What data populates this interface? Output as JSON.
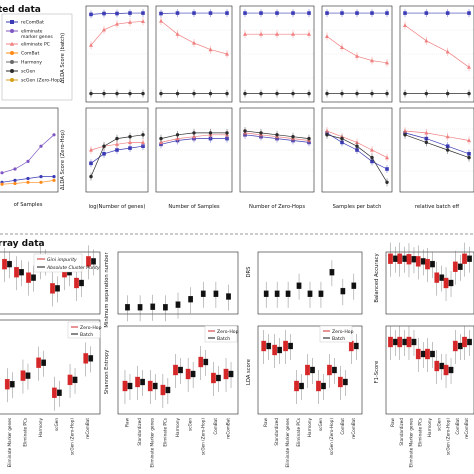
{
  "sections": {
    "top_title": "ted data",
    "bottom_title": "rray data"
  },
  "legend_top": [
    "reComBat",
    "eliminate marker genes",
    "eliminate PC",
    "ComBat",
    "Harmony",
    "scGen",
    "scGen (Zero-Hop)"
  ],
  "colors": {
    "reComBat": "#3b3bb5",
    "eliminate marker genes": "#7e57c2",
    "eliminate PC": "#f08080",
    "ComBat": "#ff8c1a",
    "Harmony": "#6b6b6b",
    "scGen": "#2d2d2d",
    "scGen (Zero-Hop)": "#d4a017",
    "red": "#d62728",
    "black": "#111111"
  },
  "chart_data": [
    {
      "id": "top-row1",
      "type": "line",
      "ylabel": "ΔLDA Score (batch)",
      "panels": [
        {
          "xlabel": "log(Number of genes)",
          "ylim": [
            -1,
            1
          ],
          "series": [
            {
              "name": "reComBat",
              "values": [
                0.9,
                0.92,
                0.92,
                0.93,
                0.93
              ]
            },
            {
              "name": "eliminate PC",
              "values": [
                0.2,
                0.55,
                0.68,
                0.72,
                0.74
              ]
            },
            {
              "name": "scGen",
              "values": [
                -0.9,
                -0.9,
                -0.9,
                -0.9,
                -0.9
              ]
            }
          ]
        },
        {
          "xlabel": "Number of Samples",
          "ylim": [
            -1,
            1
          ],
          "series": [
            {
              "name": "reComBat",
              "values": [
                0.92,
                0.93,
                0.93,
                0.93,
                0.93
              ]
            },
            {
              "name": "eliminate PC",
              "values": [
                0.75,
                0.45,
                0.25,
                0.1,
                0.0
              ]
            },
            {
              "name": "scGen",
              "values": [
                -0.9,
                -0.9,
                -0.9,
                -0.9,
                -0.9
              ]
            }
          ]
        },
        {
          "xlabel": "Number of Zero-Hops",
          "ylim": [
            -1,
            1
          ],
          "series": [
            {
              "name": "reComBat",
              "values": [
                0.93,
                0.93,
                0.93,
                0.93,
                0.93
              ]
            },
            {
              "name": "eliminate PC",
              "values": [
                0.45,
                0.45,
                0.45,
                0.45,
                0.45
              ]
            },
            {
              "name": "scGen",
              "values": [
                -0.9,
                -0.9,
                -0.9,
                -0.9,
                -0.9
              ]
            }
          ]
        },
        {
          "xlabel": "Samples per batch",
          "ylim": [
            -1,
            1
          ],
          "series": [
            {
              "name": "reComBat",
              "values": [
                0.93,
                0.93,
                0.93,
                0.93,
                0.93
              ]
            },
            {
              "name": "eliminate PC",
              "values": [
                0.4,
                0.15,
                -0.05,
                -0.15,
                -0.2
              ]
            },
            {
              "name": "scGen",
              "values": [
                -0.9,
                -0.9,
                -0.9,
                -0.9,
                -0.9
              ]
            }
          ]
        },
        {
          "xlabel": "relative batch eff",
          "ylim": [
            -1,
            1
          ],
          "series": [
            {
              "name": "reComBat",
              "values": [
                0.93,
                0.93,
                0.93,
                0.93
              ]
            },
            {
              "name": "eliminate PC",
              "values": [
                0.65,
                0.3,
                0.05,
                -0.3
              ]
            },
            {
              "name": "scGen",
              "values": [
                -0.9,
                -0.9,
                -0.9,
                -0.9
              ]
            }
          ]
        }
      ]
    },
    {
      "id": "top-row2",
      "type": "line",
      "ylabel": "ΔLDA Score (Zero-Hop)",
      "panels": [
        {
          "xlabel": "log(Number of genes)",
          "ylim": [
            -1,
            1
          ],
          "series": [
            {
              "name": "reComBat",
              "values": [
                -0.35,
                -0.1,
                0.0,
                0.05,
                0.1
              ]
            },
            {
              "name": "eliminate PC",
              "values": [
                0.0,
                0.1,
                0.15,
                0.2,
                0.2
              ]
            },
            {
              "name": "scGen",
              "values": [
                -0.7,
                0.1,
                0.3,
                0.35,
                0.4
              ]
            }
          ]
        },
        {
          "xlabel": "Number of Samples",
          "ylim": [
            -1,
            1
          ],
          "series": [
            {
              "name": "reComBat",
              "values": [
                0.15,
                0.25,
                0.3,
                0.3,
                0.3
              ]
            },
            {
              "name": "eliminate PC",
              "values": [
                0.2,
                0.3,
                0.35,
                0.4,
                0.4
              ]
            },
            {
              "name": "scGen",
              "values": [
                0.3,
                0.4,
                0.45,
                0.45,
                0.45
              ]
            }
          ]
        },
        {
          "xlabel": "Number of Zero-Hops",
          "ylim": [
            -1,
            1
          ],
          "series": [
            {
              "name": "reComBat",
              "values": [
                0.4,
                0.35,
                0.3,
                0.25,
                0.2
              ]
            },
            {
              "name": "eliminate PC",
              "values": [
                0.45,
                0.4,
                0.35,
                0.3,
                0.25
              ]
            },
            {
              "name": "scGen",
              "values": [
                0.5,
                0.45,
                0.4,
                0.35,
                0.3
              ]
            }
          ]
        },
        {
          "xlabel": "Samples per batch",
          "ylim": [
            -1,
            1
          ],
          "series": [
            {
              "name": "reComBat",
              "values": [
                0.45,
                0.2,
                0.0,
                -0.3,
                -0.5
              ]
            },
            {
              "name": "eliminate PC",
              "values": [
                0.5,
                0.35,
                0.2,
                0.0,
                -0.2
              ]
            },
            {
              "name": "scGen",
              "values": [
                0.4,
                0.3,
                0.1,
                -0.2,
                -0.85
              ]
            }
          ]
        },
        {
          "xlabel": "relative batch eff",
          "ylim": [
            -1,
            1
          ],
          "series": [
            {
              "name": "reComBat",
              "values": [
                0.45,
                0.3,
                0.1,
                -0.1
              ]
            },
            {
              "name": "eliminate PC",
              "values": [
                0.5,
                0.45,
                0.35,
                0.25
              ]
            },
            {
              "name": "scGen",
              "values": [
                0.4,
                0.2,
                0.0,
                -0.2
              ]
            }
          ]
        }
      ]
    },
    {
      "id": "left-partial",
      "type": "line",
      "xlabel": "of Samples",
      "series": [
        {
          "name": "eliminate marker genes",
          "values": [
            -0.6,
            -0.5,
            -0.3,
            0.1,
            0.4
          ]
        },
        {
          "name": "reComBat",
          "values": [
            -0.85,
            -0.8,
            -0.75,
            -0.7,
            -0.7
          ]
        },
        {
          "name": "ComBat",
          "values": [
            -0.9,
            -0.88,
            -0.85,
            -0.85,
            -0.8
          ]
        }
      ]
    },
    {
      "id": "micro-boxes",
      "type": "box",
      "legend": [
        "Gini impurity",
        "Absolute Cluster Purity"
      ],
      "panels": [
        {
          "ylabel": "Minimum separation number",
          "categories": [
            "Raw",
            "Standardized",
            "Eliminate Marker genes",
            "Eliminate PCs",
            "Harmony",
            "scGen",
            "scGen (Zero-Hop)",
            "ComBat",
            "reComBat"
          ],
          "medians": [
            0.05,
            0.05,
            0.06,
            0.05,
            0.1,
            0.2,
            0.3,
            0.3,
            0.25
          ]
        },
        {
          "ylabel": "DRS",
          "categories": [
            "Raw",
            "Standardized",
            "Eliminate Marker genes",
            "Eliminate PCs",
            "Harmony",
            "scGen",
            "scGen (Zero-Hop)",
            "ComBat",
            "reComBat"
          ],
          "medians": [
            0.3,
            0.3,
            0.3,
            0.45,
            0.3,
            0.3,
            0.7,
            0.35,
            0.45
          ]
        },
        {
          "ylabel": "Balanced Accuracy",
          "categories": [
            "Raw",
            "Standardized",
            "Eliminate Marker genes",
            "Eliminate PCs",
            "Harmony",
            "scGen",
            "scGen (Zero-Hop)",
            "ComBat",
            "reComBat"
          ],
          "medians": [
            0.95,
            0.95,
            0.94,
            0.9,
            0.85,
            0.6,
            0.5,
            0.8,
            0.95
          ]
        }
      ]
    },
    {
      "id": "micro-zero-hop-batch",
      "type": "box",
      "legend": [
        "Zero-Hop",
        "Batch"
      ],
      "categories": [
        "Raw",
        "Standardized",
        "Eliminate Marker genes",
        "Eliminate PCs",
        "Harmony",
        "scGen",
        "scGen (Zero-Hop)",
        "ComBat",
        "reComBat"
      ],
      "panels": [
        {
          "ylabel": "Shannon Entropy"
        },
        {
          "ylabel": "LDA score"
        },
        {
          "ylabel": "F1-Score"
        }
      ]
    }
  ],
  "axis_text": {
    "top_row1_ylabel": "ΔLDA Score (batch)",
    "top_row2_ylabel": "ΔLDA Score (Zero-Hop)",
    "xlabels": [
      "log(Number of genes)",
      "Number of Samples",
      "Number of Zero-Hops",
      "Samples per batch",
      "relative batch eff"
    ],
    "left_xlabel": "of Samples",
    "min_sep": "Minimum separation number",
    "drs": "DRS",
    "bal_acc": "Balanced Accuracy",
    "shannon": "Shannon Entropy",
    "lda": "LDA score",
    "f1": "F1-Score",
    "cats": [
      "Raw",
      "Standardized",
      "Eliminate Marker genes",
      "Eliminate PCs",
      "Harmony",
      "scGen",
      "scGen (Zero-Hop)",
      "ComBat",
      "reComBat"
    ],
    "leftcats": [
      "Eliminate Marker genes",
      "Eliminate PCs",
      "Harmony",
      "scGen",
      "scGen (Zero-Hop)",
      "reComBat"
    ],
    "legend_gini": "Gini impurity",
    "legend_acp": "Absolute Cluster Purity",
    "legend_zh": "Zero-Hop",
    "legend_batch": "Batch"
  }
}
